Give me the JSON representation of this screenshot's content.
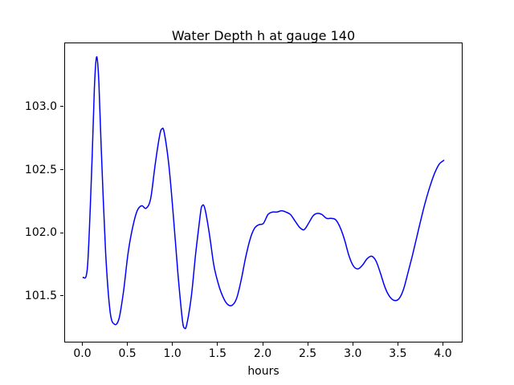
{
  "chart_data": {
    "type": "line",
    "title": "Water Depth h at gauge 140",
    "xlabel": "hours",
    "ylabel": "",
    "xlim": [
      -0.2,
      4.2
    ],
    "ylim": [
      101.1425,
      103.5075
    ],
    "xticks": [
      0.0,
      0.5,
      1.0,
      1.5,
      2.0,
      2.5,
      3.0,
      3.5,
      4.0
    ],
    "xtick_labels": [
      "0.0",
      "0.5",
      "1.0",
      "1.5",
      "2.0",
      "2.5",
      "3.0",
      "3.5",
      "4.0"
    ],
    "yticks": [
      101.5,
      102.0,
      102.5,
      103.0
    ],
    "ytick_labels": [
      "101.5",
      "102.0",
      "102.5",
      "103.0"
    ],
    "grid": false,
    "legend": "none",
    "line_color": "#0000ff",
    "line_width": 1.5,
    "series": [
      {
        "name": "h",
        "x": [
          0.0,
          0.05,
          0.1,
          0.125,
          0.15,
          0.175,
          0.2,
          0.25,
          0.3,
          0.35,
          0.4,
          0.45,
          0.5,
          0.55,
          0.6,
          0.65,
          0.7,
          0.75,
          0.8,
          0.85,
          0.875,
          0.9,
          0.95,
          1.0,
          1.05,
          1.1,
          1.125,
          1.15,
          1.2,
          1.25,
          1.3,
          1.32,
          1.35,
          1.4,
          1.45,
          1.5,
          1.55,
          1.6,
          1.65,
          1.7,
          1.75,
          1.8,
          1.85,
          1.9,
          1.95,
          2.0,
          2.05,
          2.1,
          2.15,
          2.2,
          2.25,
          2.3,
          2.35,
          2.4,
          2.45,
          2.5,
          2.55,
          2.6,
          2.65,
          2.7,
          2.75,
          2.8,
          2.85,
          2.9,
          2.95,
          3.0,
          3.05,
          3.1,
          3.15,
          3.2,
          3.25,
          3.3,
          3.35,
          3.4,
          3.45,
          3.5,
          3.55,
          3.6,
          3.65,
          3.7,
          3.75,
          3.8,
          3.85,
          3.9,
          3.95,
          4.0
        ],
        "y": [
          101.65,
          101.75,
          102.6,
          103.15,
          103.4,
          103.2,
          102.7,
          101.85,
          101.38,
          101.28,
          101.33,
          101.55,
          101.85,
          102.05,
          102.18,
          102.22,
          102.2,
          102.28,
          102.55,
          102.78,
          102.83,
          102.8,
          102.55,
          102.15,
          101.7,
          101.32,
          101.25,
          101.28,
          101.5,
          101.85,
          102.15,
          102.22,
          102.2,
          102.0,
          101.75,
          101.6,
          101.5,
          101.44,
          101.43,
          101.48,
          101.62,
          101.8,
          101.95,
          102.04,
          102.07,
          102.08,
          102.15,
          102.17,
          102.17,
          102.18,
          102.17,
          102.15,
          102.1,
          102.05,
          102.03,
          102.08,
          102.14,
          102.16,
          102.15,
          102.12,
          102.12,
          102.11,
          102.05,
          101.95,
          101.82,
          101.74,
          101.72,
          101.75,
          101.8,
          101.82,
          101.78,
          101.68,
          101.57,
          101.5,
          101.47,
          101.48,
          101.55,
          101.68,
          101.82,
          101.97,
          102.12,
          102.26,
          102.38,
          102.48,
          102.55,
          102.58
        ]
      }
    ]
  }
}
